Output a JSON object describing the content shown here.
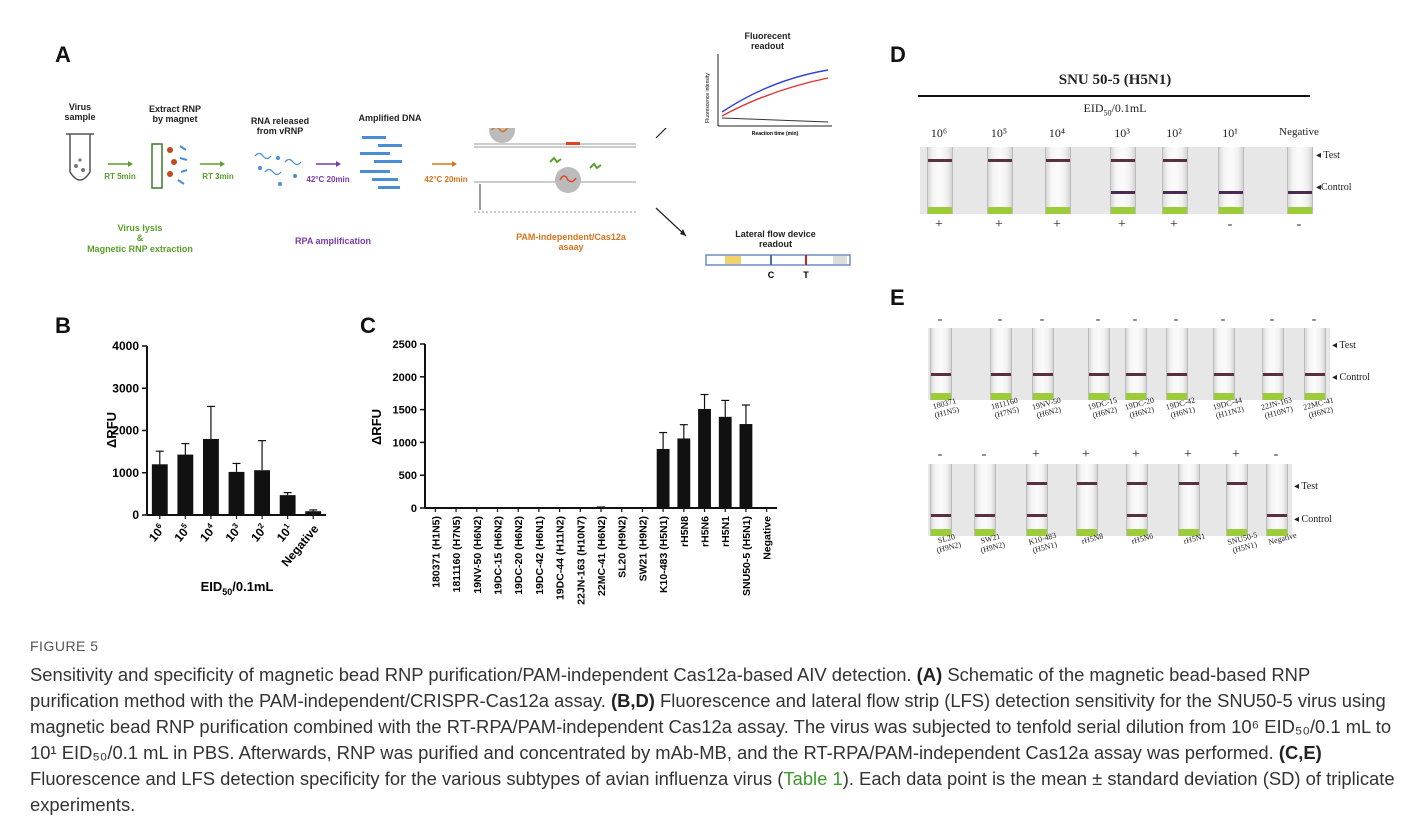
{
  "panel_a": {
    "letter": "A",
    "virus_sample": "Virus sample",
    "extract_rnp": "Extract RNP by magnet",
    "rna_released": "RNA released from vRNP",
    "amplified_dna": "Amplified DNA",
    "magnet_label": "Magnet",
    "rt_5min": "RT 5min",
    "rt_3min": "RT 3min",
    "step_42_1": "42°C 20min",
    "step_42_2": "42°C 20min",
    "lysis_line1": "Virus lysis",
    "lysis_line2": "&",
    "lysis_line3": "Magnetic RNP extraction",
    "rpa": "RPA amplification",
    "cas_line1": "PAM-independent/Cas12a",
    "cas_line2": "asaay",
    "fluorescent_readout": "Fluorecent readout",
    "fl_yaxis": "Fluorescence intensity",
    "fl_xaxis": "Reaction time (min)",
    "lateral_flow": "Lateral flow device readout",
    "c_label": "C",
    "t_label": "T",
    "colors": {
      "green": "#5aa12c",
      "purple": "#7a3aa8",
      "orange": "#d9731c",
      "blue": "#4a8fd6"
    }
  },
  "panel_b": {
    "letter": "B",
    "chart_data": {
      "type": "bar",
      "categories": [
        "10^6",
        "10^5",
        "10^4",
        "10^3",
        "10^2",
        "10^1",
        "Negative"
      ],
      "values": [
        1200,
        1430,
        1800,
        1020,
        1060,
        470,
        90
      ],
      "errors": [
        310,
        260,
        770,
        200,
        700,
        60,
        30
      ],
      "ylabel": "ΔRFU",
      "xlabel": "EID50/0.1mL",
      "ylim": [
        0,
        4000
      ],
      "yticks": [
        0,
        1000,
        2000,
        3000,
        4000
      ]
    },
    "ylabel": "ΔRFU",
    "xlabel_main": "EID",
    "xlabel_sub": "50",
    "xlabel_tail": "/0.1mL"
  },
  "panel_c": {
    "letter": "C",
    "chart_data": {
      "type": "bar",
      "categories": [
        "180371 (H1N5)",
        "1811160 (H7N5)",
        "19NV-50 (H6N2)",
        "19DC-15 (H6N2)",
        "19DC-20 (H6N2)",
        "19DC-42 (H6N1)",
        "19DC-44 (H11N2)",
        "22JN-163 (H10N7)",
        "22MC-41 (H6N2)",
        "SL20 (H9N2)",
        "SW21 (H9N2)",
        "K10-483 (H5N1)",
        "rH5N8",
        "rH5N6",
        "rH5N1",
        "SNU50-5 (H5N1)",
        "Negative"
      ],
      "values": [
        0,
        0,
        0,
        0,
        0,
        0,
        0,
        0,
        5,
        0,
        0,
        900,
        1060,
        1510,
        1390,
        1280,
        0
      ],
      "errors": [
        0,
        0,
        0,
        0,
        0,
        0,
        0,
        0,
        10,
        0,
        0,
        250,
        210,
        220,
        250,
        290,
        0
      ],
      "ylabel": "ΔRFU",
      "ylim": [
        0,
        2500
      ],
      "yticks": [
        0,
        500,
        1000,
        1500,
        2000,
        2500
      ]
    },
    "ylabel": "ΔRFU"
  },
  "panel_d": {
    "letter": "D",
    "title": "SNU 50-5 (H5N1)",
    "subtitle": "EID50/0.1mL",
    "dilutions": [
      "10⁶",
      "10⁵",
      "10⁴",
      "10³",
      "10²",
      "10¹",
      "Negative"
    ],
    "results": [
      "+",
      "+",
      "+",
      "+",
      "+",
      "-",
      "-"
    ],
    "test_label": "Test",
    "control_label": "Control"
  },
  "panel_e": {
    "letter": "E",
    "row1_results": [
      "-",
      "-",
      "-",
      "-",
      "-",
      "-",
      "-",
      "-",
      "-"
    ],
    "row1_labels": [
      "180371 (H1N5)",
      "1811160 (H7N5)",
      "19NV-50 (H6N2)",
      "19DC-15 (H6N2)",
      "19DC-20 (H6N2)",
      "19DC-42 (H6N1)",
      "19DC-44 (H11N2)",
      "22JN-163 (H10N7)",
      "22MC-41 (H6N2)"
    ],
    "row2_results": [
      "-",
      "-",
      "+",
      "+",
      "+",
      "+",
      "+",
      "-"
    ],
    "row2_labels": [
      "SL20 (H9N2)",
      "SW21 (H9N2)",
      "K10-483 (H5N1)",
      "rH5N8",
      "rH5N6",
      "rH5N1",
      "SNU50-5 (H5N1)",
      "Negative"
    ],
    "test_label": "Test",
    "control_label": "Control"
  },
  "caption": {
    "figure_label": "FIGURE 5",
    "sentence1": "Sensitivity and specificity of magnetic bead RNP purification/PAM-independent Cas12a-based AIV detection.",
    "tag_a": "(A)",
    "text_a": "Schematic of the magnetic bead-based RNP purification method with the PAM-independent/CRISPR-Cas12a assay.",
    "tag_bd": "(B,D)",
    "text_bd": "Fluorescence and lateral flow strip (LFS) detection sensitivity for the SNU50-5 virus using magnetic bead RNP purification combined with the RT-RPA/PAM-independent Cas12a assay. The virus was subjected to tenfold serial dilution from 10⁶ EID₅₀/0.1 mL to 10¹ EID₅₀/0.1 mL in PBS. Afterwards, RNP was purified and concentrated by mAb-MB, and the RT-RPA/PAM-independent Cas12a assay was performed.",
    "tag_ce": "(C,E)",
    "text_ce_1": "Fluorescence and LFS detection specificity for the various subtypes of avian influenza virus (",
    "link": "Table 1",
    "text_ce_2": "). Each data point is the mean ± standard deviation (SD) of triplicate experiments."
  }
}
